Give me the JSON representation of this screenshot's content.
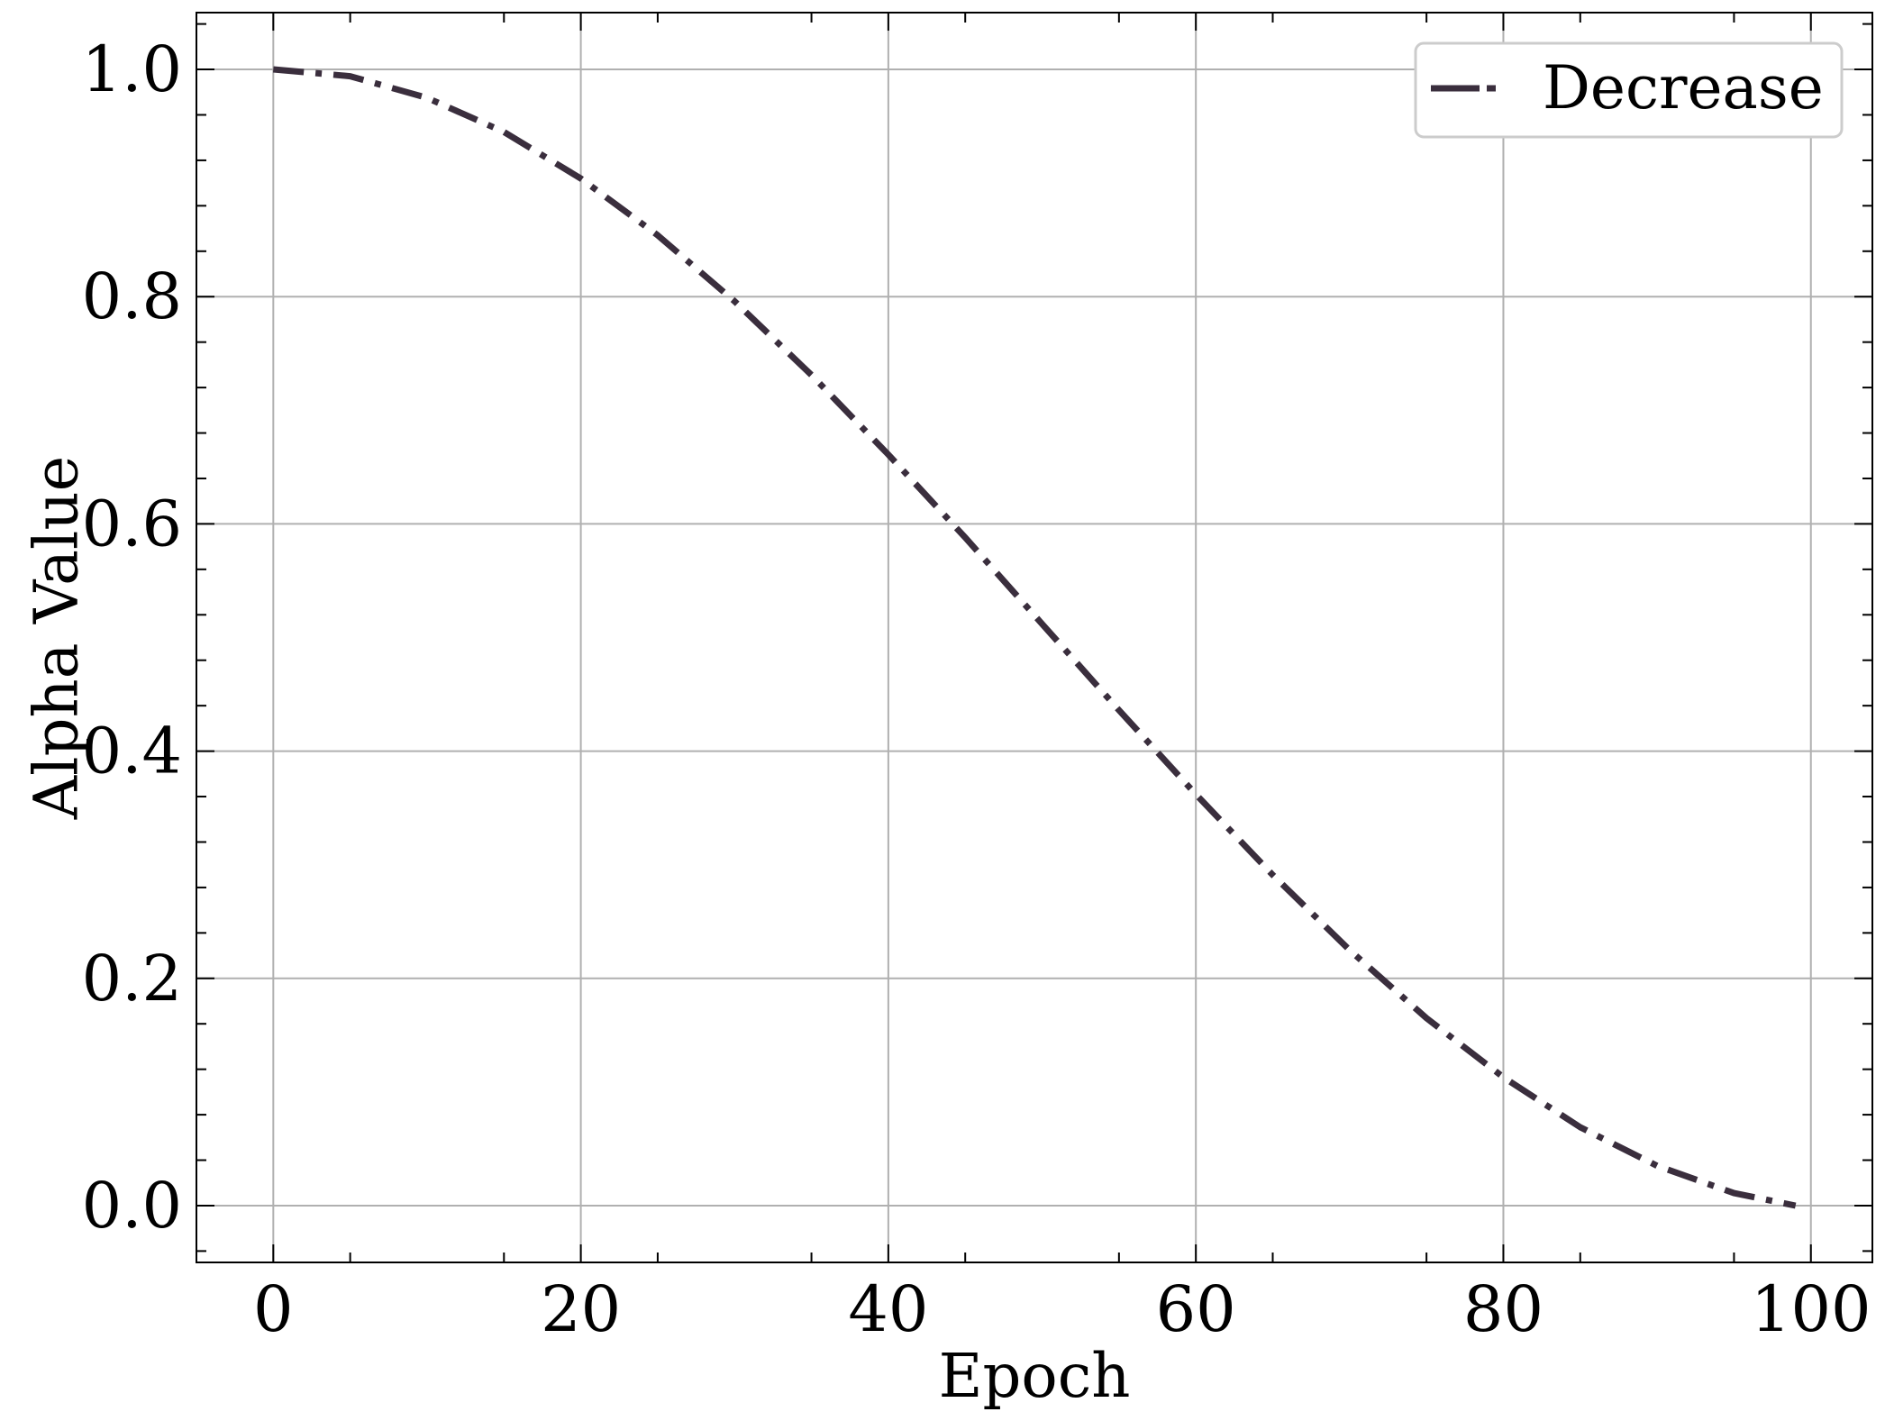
{
  "chart_data": {
    "type": "line",
    "title": "",
    "xlabel": "Epoch",
    "ylabel": "Alpha Value",
    "xlim": [
      -5,
      104
    ],
    "ylim": [
      -0.05,
      1.05
    ],
    "xticks": [
      0,
      20,
      40,
      60,
      80,
      100
    ],
    "xtick_labels": [
      "0",
      "20",
      "40",
      "60",
      "80",
      "100"
    ],
    "yticks": [
      0.0,
      0.2,
      0.4,
      0.6,
      0.8,
      1.0
    ],
    "ytick_labels": [
      "0.0",
      "0.2",
      "0.4",
      "0.6",
      "0.8",
      "1.0"
    ],
    "grid": true,
    "legend_position": "top-right",
    "series": [
      {
        "name": "Decrease",
        "color": "#3a2e3d",
        "line_style": "dash-dot",
        "x": [
          0,
          5,
          10,
          15,
          20,
          25,
          30,
          35,
          40,
          45,
          50,
          55,
          60,
          65,
          70,
          75,
          80,
          85,
          90,
          95,
          99
        ],
        "y": [
          1.0,
          0.994,
          0.975,
          0.945,
          0.904,
          0.854,
          0.796,
          0.731,
          0.661,
          0.588,
          0.512,
          0.436,
          0.362,
          0.291,
          0.225,
          0.165,
          0.113,
          0.069,
          0.035,
          0.011,
          0.0
        ]
      }
    ]
  }
}
